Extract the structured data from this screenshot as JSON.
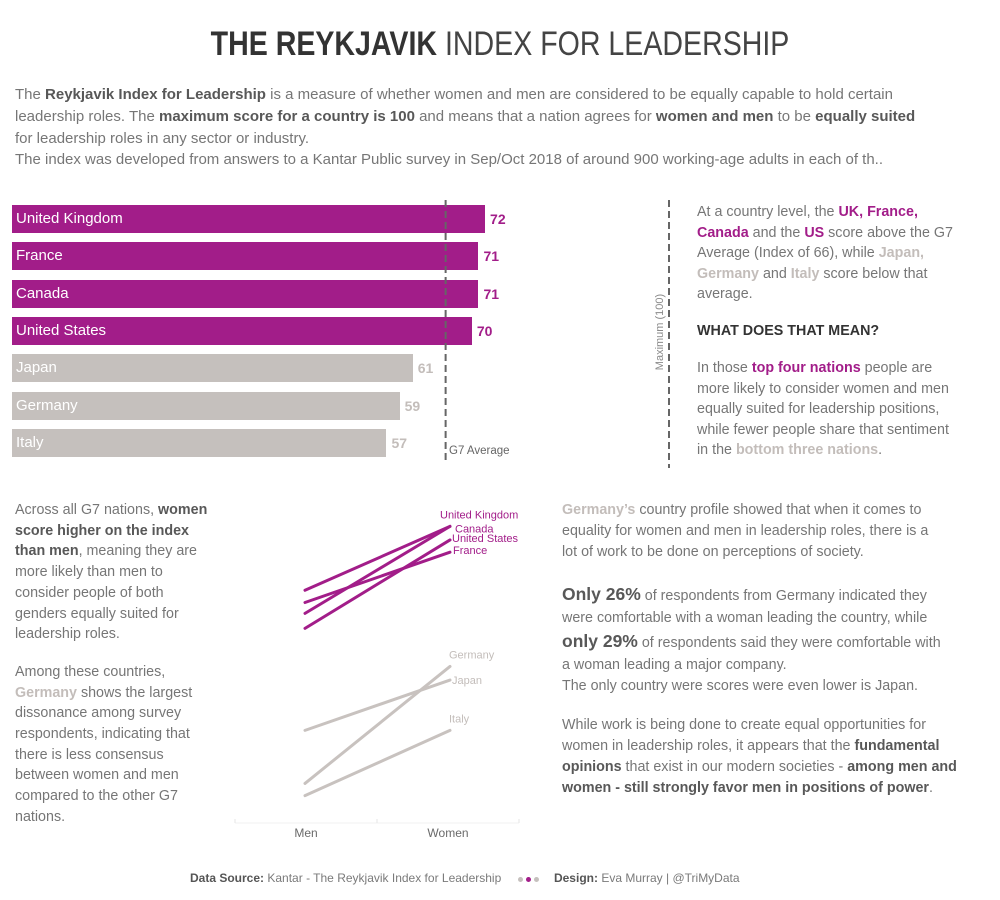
{
  "title": {
    "bold": "THE REYKJAVIK",
    "light": "INDEX FOR LEADERSHIP"
  },
  "colors": {
    "accent": "#A21D89",
    "muted": "#C5C0BD",
    "line_muted": "#C8C2BF",
    "label_muted": "#C3BDBA",
    "reference_line": "#666666"
  },
  "intro": {
    "paragraphs": [
      [
        [
          [
            "The ",
            "n"
          ],
          [
            "Reykjavik Index for Leadership",
            "b"
          ],
          [
            " is a measure of whether women and men are considered to be equally capable to hold certain",
            "n"
          ]
        ],
        [
          [
            "leadership roles. The ",
            "n"
          ],
          [
            "maximum score for a country is 100",
            "b"
          ],
          [
            " and means that a nation agrees for ",
            "n"
          ],
          [
            "women and men",
            "b"
          ],
          [
            " to be ",
            "n"
          ],
          [
            "equally suited",
            "b"
          ]
        ],
        [
          [
            "for leadership roles in any sector or industry.",
            "n"
          ]
        ],
        [
          [
            "The index was developed from answers to a Kantar Public survey in Sep/Oct 2018 of around 900 working-age adults in each of th..",
            "n"
          ]
        ]
      ]
    ]
  },
  "country_summary": {
    "paragraphs": [
      [
        [
          [
            "At a country level, the ",
            "n"
          ],
          [
            "UK, France,",
            "p"
          ]
        ],
        [
          [
            "Canada",
            "p"
          ],
          [
            " and the ",
            "n"
          ],
          [
            "US",
            "p"
          ],
          [
            " score above the G7",
            "n"
          ]
        ],
        [
          [
            "Average (Index of 66), while ",
            "n"
          ],
          [
            "Japan,",
            "g"
          ]
        ],
        [
          [
            "Germany",
            "g"
          ],
          [
            " and ",
            "n"
          ],
          [
            "Italy",
            "g"
          ],
          [
            " score below that",
            "n"
          ]
        ],
        [
          [
            "average.",
            "n"
          ]
        ]
      ],
      [
        [
          [
            "WHAT DOES THAT MEAN?",
            "h"
          ]
        ]
      ],
      [
        [
          [
            "In those ",
            "n"
          ],
          [
            "top four nations",
            "p"
          ],
          [
            " people are",
            "n"
          ]
        ],
        [
          [
            "more likely to consider women and men",
            "n"
          ]
        ],
        [
          [
            "equally suited for leadership positions,",
            "n"
          ]
        ],
        [
          [
            "while fewer people share that sentiment",
            "n"
          ]
        ],
        [
          [
            "in the ",
            "n"
          ],
          [
            "bottom three nations",
            "g"
          ],
          [
            ".",
            "n"
          ]
        ]
      ]
    ]
  },
  "gender_summary": {
    "paragraphs": [
      [
        [
          [
            "Across all G7 nations, ",
            "n"
          ],
          [
            "women",
            "b"
          ]
        ],
        [
          [
            "score higher on the index",
            "b"
          ]
        ],
        [
          [
            "than men",
            "b"
          ],
          [
            ", meaning they are",
            "n"
          ]
        ],
        [
          [
            "more likely than men to",
            "n"
          ]
        ],
        [
          [
            "consider people of both",
            "n"
          ]
        ],
        [
          [
            "genders equally suited for",
            "n"
          ]
        ],
        [
          [
            "leadership roles.",
            "n"
          ]
        ]
      ],
      [
        [
          [
            "Among these countries,",
            "n"
          ]
        ],
        [
          [
            "Germany",
            "g"
          ],
          [
            " shows the largest",
            "n"
          ]
        ],
        [
          [
            "dissonance among survey",
            "n"
          ]
        ],
        [
          [
            "respondents, indicating that",
            "n"
          ]
        ],
        [
          [
            "there is less consensus",
            "n"
          ]
        ],
        [
          [
            "between women and men",
            "n"
          ]
        ],
        [
          [
            "compared to the other G7",
            "n"
          ]
        ],
        [
          [
            "nations.",
            "n"
          ]
        ]
      ]
    ]
  },
  "germany_summary": {
    "paragraphs": [
      [
        [
          [
            "Germany’s",
            "g"
          ],
          [
            " country profile showed that when it comes to",
            "n"
          ]
        ],
        [
          [
            "equality for women and men in leadership roles, there is a",
            "n"
          ]
        ],
        [
          [
            "lot of work to be done on perceptions of society.",
            "n"
          ]
        ]
      ],
      [
        [
          [
            "Only 26%",
            "big"
          ],
          [
            " of respondents from Germany indicated they",
            "n"
          ]
        ],
        [
          [
            "were comfortable with a woman leading the country, while",
            "n"
          ]
        ],
        [
          [
            "only 29%",
            "big"
          ],
          [
            " of respondents said they were comfortable with",
            "n"
          ]
        ],
        [
          [
            "a woman leading a major company.",
            "n"
          ]
        ],
        [
          [
            "The only country were scores were even lower is Japan.",
            "n"
          ]
        ]
      ],
      [
        [
          [
            "While work is being done to create equal opportunities for",
            "n"
          ]
        ],
        [
          [
            "women in leadership roles, it appears that the ",
            "n"
          ],
          [
            "fundamental",
            "b"
          ]
        ],
        [
          [
            "opinions",
            "b"
          ],
          [
            " that exist in our modern societies - ",
            "n"
          ],
          [
            "among men and",
            "b"
          ]
        ],
        [
          [
            "women - still strongly favor men in positions of power",
            "b"
          ],
          [
            ".",
            "n"
          ]
        ]
      ]
    ]
  },
  "chart_data": [
    {
      "type": "bar",
      "orientation": "horizontal",
      "title": "",
      "xlabel": "",
      "ylabel": "",
      "categories": [
        "United Kingdom",
        "France",
        "Canada",
        "United States",
        "Japan",
        "Germany",
        "Italy"
      ],
      "values": [
        72,
        71,
        71,
        70,
        61,
        59,
        57
      ],
      "xlim": [
        0,
        100
      ],
      "grid": false,
      "color_rule": "above G7 average = accent, below = muted",
      "reference_lines": [
        {
          "label": "G7 Average",
          "value": 66
        },
        {
          "label": "Maximum (100)",
          "value": 100
        }
      ]
    },
    {
      "type": "line",
      "subtype": "slope",
      "title": "",
      "x": [
        "Men",
        "Women"
      ],
      "ylabel": "",
      "note": "values estimated from line positions (no y-axis shown)",
      "series": [
        {
          "name": "United Kingdom",
          "values": [
            69.7,
            74.4
          ],
          "group": "above"
        },
        {
          "name": "France",
          "values": [
            68.8,
            72.5
          ],
          "group": "above"
        },
        {
          "name": "Canada",
          "values": [
            68.0,
            74.4
          ],
          "group": "above"
        },
        {
          "name": "United States",
          "values": [
            66.9,
            73.4
          ],
          "group": "above"
        },
        {
          "name": "Japan",
          "values": [
            59.4,
            63.1
          ],
          "group": "below"
        },
        {
          "name": "Germany",
          "values": [
            55.5,
            64.1
          ],
          "group": "below"
        },
        {
          "name": "Italy",
          "values": [
            54.6,
            59.4
          ],
          "group": "below"
        }
      ]
    }
  ],
  "footer": {
    "source_label": "Data Source:",
    "source_text": "Kantar - The Reykjavik Index for Leadership",
    "design_label": "Design:",
    "design_text": "Eva Murray | @TriMyData"
  }
}
